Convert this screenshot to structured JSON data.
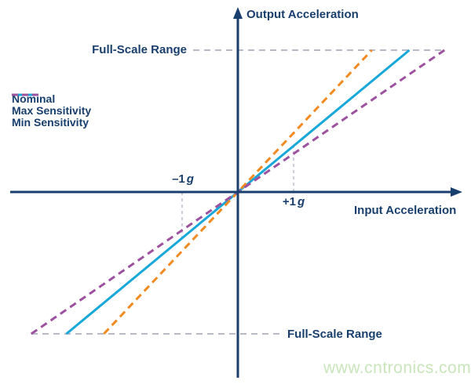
{
  "colors": {
    "text": "#183f6d",
    "axis": "#183f6d",
    "full_scale_guide": "#b9bac9",
    "marker_guide": "#c7c8d8",
    "watermark": "#c8e6ba"
  },
  "watermark": "www.cntronics.com",
  "labels": {
    "y_axis": "Output Acceleration",
    "x_axis": "Input Acceleration",
    "full_scale_top": "Full-Scale Range",
    "full_scale_bottom": "Full-Scale Range",
    "marker_minus": {
      "value": "–1",
      "unit": "g"
    },
    "marker_plus": {
      "value": "+1",
      "unit": "g"
    }
  },
  "chart_data": {
    "type": "line",
    "title": "",
    "xlabel": "Input Acceleration",
    "ylabel": "Output Acceleration",
    "x_markers_g": [
      -1,
      1
    ],
    "y_full_scale_levels": [
      -1,
      1
    ],
    "nominal_output_fraction_of_fs_at_1g": 0.325,
    "series": [
      {
        "name": "Nominal",
        "sensitivity_rel": 1.0,
        "color": "#18a7d9",
        "style": "solid"
      },
      {
        "name": "Max Sensitivity",
        "sensitivity_rel": 1.28,
        "color": "#f08a21",
        "style": "dashed"
      },
      {
        "name": "Min Sensitivity",
        "sensitivity_rel": 0.83,
        "color": "#9d529f",
        "style": "dashed"
      }
    ],
    "legend_position": "left-middle",
    "grid": false
  }
}
